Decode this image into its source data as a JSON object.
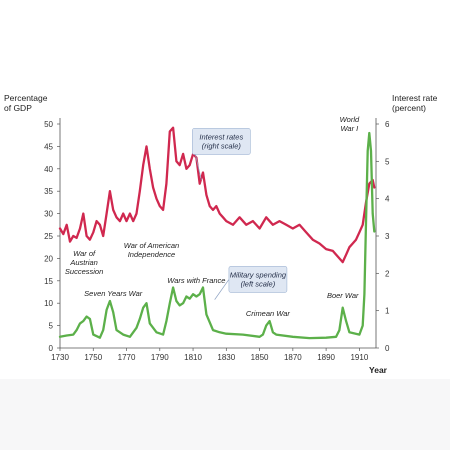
{
  "chart_data": {
    "type": "line",
    "y_left_title": [
      "Percentage",
      "of GDP"
    ],
    "y_right_title": [
      "Interest rate",
      "(percent)"
    ],
    "x_title": "Year",
    "xlim": [
      1730,
      1920
    ],
    "ylim_left": [
      0,
      50
    ],
    "ylim_right": [
      0,
      6
    ],
    "x_ticks": [
      1730,
      1750,
      1770,
      1790,
      1810,
      1830,
      1850,
      1870,
      1890,
      1910
    ],
    "y_left_ticks": [
      0,
      5,
      10,
      15,
      20,
      25,
      30,
      35,
      40,
      45,
      50
    ],
    "y_right_ticks": [
      0,
      1,
      2,
      3,
      4,
      5,
      6
    ],
    "grid": false,
    "colors": {
      "interest": "#d0284f",
      "military": "#5cb04a"
    },
    "series": [
      {
        "key": "interest",
        "axis": "right",
        "x": [
          1730,
          1732,
          1734,
          1736,
          1738,
          1740,
          1742,
          1744,
          1746,
          1748,
          1750,
          1752,
          1754,
          1756,
          1758,
          1760,
          1762,
          1764,
          1766,
          1768,
          1770,
          1772,
          1774,
          1776,
          1778,
          1780,
          1782,
          1784,
          1786,
          1788,
          1790,
          1792,
          1794,
          1796,
          1798,
          1800,
          1802,
          1804,
          1806,
          1808,
          1810,
          1812,
          1814,
          1816,
          1818,
          1820,
          1822,
          1824,
          1826,
          1828,
          1830,
          1834,
          1838,
          1842,
          1846,
          1850,
          1854,
          1858,
          1862,
          1866,
          1870,
          1874,
          1878,
          1882,
          1886,
          1890,
          1894,
          1898,
          1900,
          1902,
          1904,
          1906,
          1908,
          1910,
          1912,
          1914,
          1916,
          1918,
          1919
        ],
        "y": [
          3.2,
          3.05,
          3.3,
          2.85,
          3.0,
          2.95,
          3.2,
          3.6,
          3.0,
          2.9,
          3.1,
          3.4,
          3.3,
          3.0,
          3.6,
          4.2,
          3.7,
          3.5,
          3.4,
          3.6,
          3.4,
          3.6,
          3.4,
          3.6,
          4.2,
          4.9,
          5.4,
          4.8,
          4.3,
          4.0,
          3.8,
          3.7,
          4.4,
          5.8,
          5.9,
          5.0,
          4.9,
          5.2,
          4.8,
          4.9,
          5.2,
          5.1,
          4.4,
          4.7,
          4.1,
          3.8,
          3.7,
          3.8,
          3.6,
          3.5,
          3.4,
          3.3,
          3.5,
          3.3,
          3.4,
          3.2,
          3.5,
          3.3,
          3.4,
          3.3,
          3.2,
          3.3,
          3.1,
          2.9,
          2.8,
          2.65,
          2.6,
          2.4,
          2.3,
          2.5,
          2.7,
          2.8,
          2.9,
          3.1,
          3.3,
          3.9,
          4.4,
          4.5,
          4.3
        ]
      },
      {
        "key": "military",
        "axis": "left",
        "x": [
          1730,
          1734,
          1738,
          1740,
          1742,
          1744,
          1746,
          1748,
          1750,
          1754,
          1756,
          1758,
          1760,
          1762,
          1764,
          1768,
          1772,
          1776,
          1778,
          1780,
          1782,
          1784,
          1788,
          1792,
          1794,
          1796,
          1798,
          1800,
          1802,
          1804,
          1806,
          1808,
          1810,
          1812,
          1814,
          1816,
          1818,
          1822,
          1826,
          1830,
          1840,
          1850,
          1852,
          1854,
          1856,
          1858,
          1860,
          1870,
          1880,
          1890,
          1896,
          1898,
          1900,
          1902,
          1904,
          1910,
          1912,
          1913,
          1914,
          1915,
          1916,
          1917,
          1918,
          1919
        ],
        "y": [
          2.5,
          2.8,
          3.0,
          4.0,
          5.5,
          6.0,
          7.0,
          6.5,
          3.0,
          2.3,
          4.0,
          8.5,
          10.5,
          8.0,
          4.0,
          3.0,
          2.5,
          4.5,
          6.5,
          9.0,
          10.0,
          5.5,
          3.5,
          3.0,
          6.0,
          10.0,
          13.5,
          10.5,
          9.5,
          10.0,
          11.5,
          11.0,
          12.0,
          11.5,
          12.0,
          13.5,
          7.5,
          4.0,
          3.5,
          3.2,
          3.0,
          2.5,
          3.0,
          5.0,
          6.0,
          3.5,
          3.0,
          2.5,
          2.2,
          2.3,
          2.5,
          4.0,
          9.0,
          6.0,
          3.5,
          3.0,
          5.0,
          12.0,
          28.0,
          44.0,
          48.0,
          44.0,
          30.0,
          26.0
        ]
      }
    ],
    "annotations": [
      {
        "lines": [
          "War of",
          "Austrian",
          "Succession"
        ],
        "x": 1744.5,
        "y": 20.5
      },
      {
        "lines": [
          "Seven Years War"
        ],
        "x": 1762,
        "y": 11.6
      },
      {
        "lines": [
          "War of American",
          "Independence"
        ],
        "x": 1785,
        "y": 22.3
      },
      {
        "lines": [
          "Wars with France"
        ],
        "x": 1812,
        "y": 14.5
      },
      {
        "lines": [
          "Crimean War"
        ],
        "x": 1855,
        "y": 7.1
      },
      {
        "lines": [
          "Boer War"
        ],
        "x": 1900,
        "y": 11.2
      },
      {
        "lines": [
          "World",
          "War I"
        ],
        "x": 1904,
        "y": 50.5
      }
    ],
    "callouts": [
      {
        "lines": [
          "Interest rates",
          "(right scale)"
        ],
        "x": 1827,
        "y": 47
      },
      {
        "lines": [
          "Military spending",
          "(left scale)"
        ],
        "x": 1849,
        "y": 16.2
      }
    ]
  }
}
